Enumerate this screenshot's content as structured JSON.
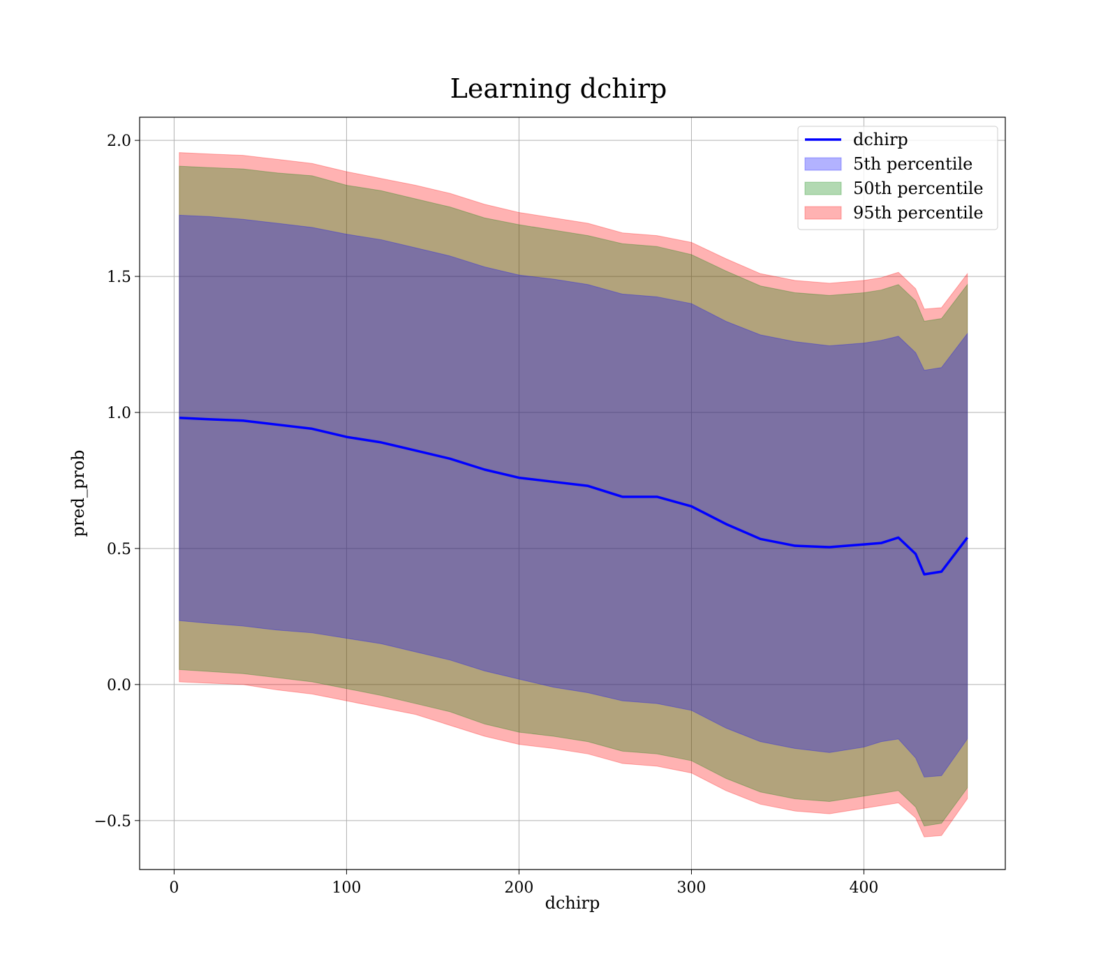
{
  "chart_data": {
    "type": "area",
    "title": "Learning dchirp",
    "xlabel": "dchirp",
    "ylabel": "pred_prob",
    "xlim": [
      -20,
      482
    ],
    "ylim": [
      -0.68,
      2.085
    ],
    "x_ticks": [
      0,
      100,
      200,
      300,
      400
    ],
    "x_tick_labels": [
      "0",
      "100",
      "200",
      "300",
      "400"
    ],
    "y_ticks": [
      -0.5,
      0.0,
      0.5,
      1.0,
      1.5,
      2.0
    ],
    "y_tick_labels": [
      "−0.5",
      "0.0",
      "0.5",
      "1.0",
      "1.5",
      "2.0"
    ],
    "grid": true,
    "legend_position": "top-right",
    "x": [
      3,
      20,
      40,
      60,
      80,
      100,
      120,
      140,
      160,
      180,
      200,
      220,
      240,
      260,
      280,
      300,
      320,
      340,
      360,
      380,
      400,
      410,
      420,
      430,
      435,
      445,
      460
    ],
    "line": {
      "name": "dchirp",
      "color": "#0000ff",
      "values": [
        0.98,
        0.975,
        0.97,
        0.955,
        0.94,
        0.91,
        0.89,
        0.86,
        0.83,
        0.79,
        0.76,
        0.745,
        0.73,
        0.69,
        0.69,
        0.655,
        0.59,
        0.535,
        0.51,
        0.505,
        0.515,
        0.52,
        0.54,
        0.48,
        0.405,
        0.415,
        0.54
      ]
    },
    "bands": [
      {
        "name": "5th percentile",
        "color": "#0000ff",
        "opacity": 0.3,
        "lower": [
          0.235,
          0.225,
          0.215,
          0.2,
          0.19,
          0.17,
          0.15,
          0.12,
          0.09,
          0.05,
          0.02,
          -0.01,
          -0.03,
          -0.06,
          -0.07,
          -0.095,
          -0.16,
          -0.21,
          -0.235,
          -0.25,
          -0.23,
          -0.21,
          -0.2,
          -0.27,
          -0.34,
          -0.335,
          -0.2
        ],
        "upper": [
          1.725,
          1.72,
          1.71,
          1.695,
          1.68,
          1.655,
          1.635,
          1.605,
          1.575,
          1.535,
          1.505,
          1.49,
          1.47,
          1.435,
          1.425,
          1.4,
          1.335,
          1.285,
          1.26,
          1.245,
          1.255,
          1.265,
          1.28,
          1.22,
          1.155,
          1.165,
          1.29
        ]
      },
      {
        "name": "50th percentile",
        "color": "#008000",
        "opacity": 0.3,
        "lower": [
          0.055,
          0.048,
          0.04,
          0.025,
          0.01,
          -0.015,
          -0.04,
          -0.07,
          -0.1,
          -0.145,
          -0.175,
          -0.19,
          -0.21,
          -0.245,
          -0.255,
          -0.28,
          -0.345,
          -0.395,
          -0.42,
          -0.43,
          -0.41,
          -0.4,
          -0.39,
          -0.45,
          -0.52,
          -0.51,
          -0.38
        ],
        "upper": [
          1.905,
          1.9,
          1.895,
          1.88,
          1.87,
          1.835,
          1.815,
          1.785,
          1.755,
          1.715,
          1.69,
          1.67,
          1.65,
          1.62,
          1.61,
          1.58,
          1.52,
          1.465,
          1.44,
          1.43,
          1.44,
          1.45,
          1.47,
          1.41,
          1.335,
          1.345,
          1.47
        ]
      },
      {
        "name": "95th percentile",
        "color": "#ff0000",
        "opacity": 0.3,
        "lower": [
          0.01,
          0.005,
          0.0,
          -0.02,
          -0.035,
          -0.06,
          -0.085,
          -0.11,
          -0.15,
          -0.19,
          -0.22,
          -0.235,
          -0.255,
          -0.29,
          -0.3,
          -0.325,
          -0.39,
          -0.44,
          -0.465,
          -0.475,
          -0.455,
          -0.445,
          -0.435,
          -0.49,
          -0.56,
          -0.555,
          -0.42
        ],
        "upper": [
          1.955,
          1.95,
          1.945,
          1.93,
          1.915,
          1.885,
          1.86,
          1.835,
          1.805,
          1.765,
          1.735,
          1.715,
          1.695,
          1.66,
          1.65,
          1.625,
          1.565,
          1.51,
          1.485,
          1.475,
          1.485,
          1.495,
          1.515,
          1.455,
          1.38,
          1.385,
          1.51
        ]
      }
    ]
  }
}
